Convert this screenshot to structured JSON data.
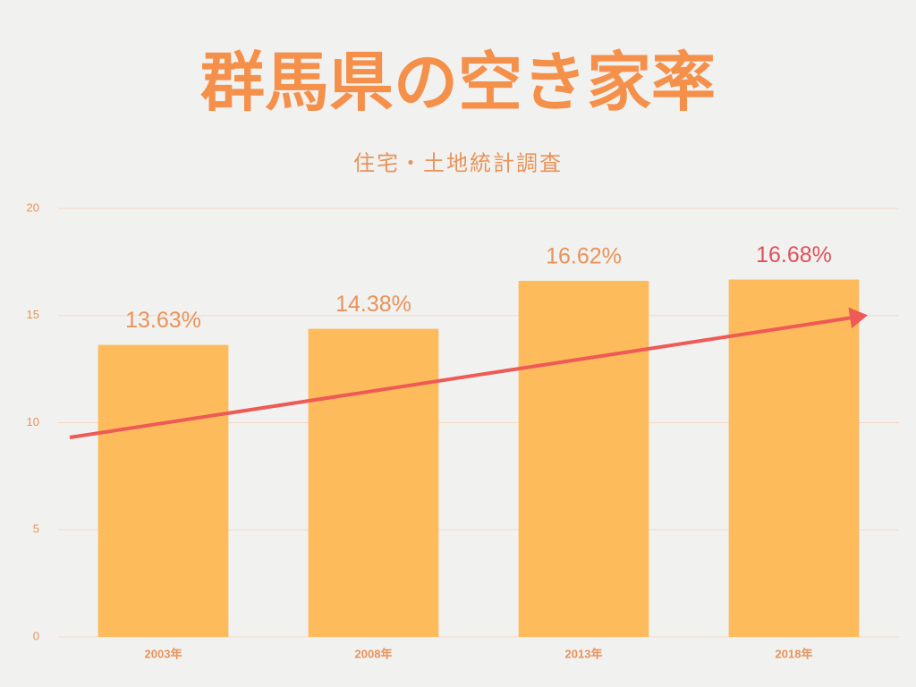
{
  "chart_data": {
    "type": "bar",
    "title": "群馬県の空き家率",
    "subtitle": "住宅・土地統計調査",
    "categories": [
      "2003年",
      "2008年",
      "2013年",
      "2018年"
    ],
    "values": [
      13.63,
      14.38,
      16.62,
      16.68
    ],
    "value_labels": [
      "13.63%",
      "14.38%",
      "16.62%",
      "16.68%"
    ],
    "value_label_colors": [
      "#e8935a",
      "#e8935a",
      "#e8935a",
      "#e0525a"
    ],
    "color": "#fdbb5c",
    "ylim": [
      0,
      20
    ],
    "yticks": [
      0,
      5,
      10,
      15,
      20
    ],
    "grid": true
  }
}
